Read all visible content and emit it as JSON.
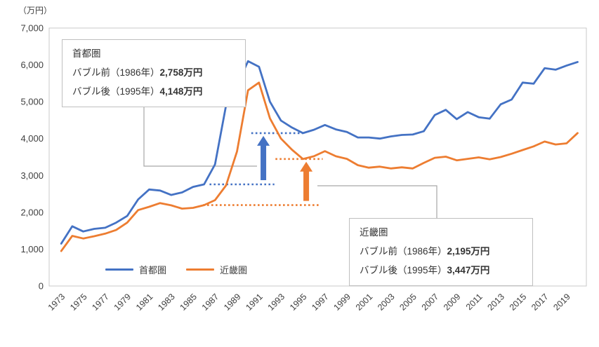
{
  "unit_label": "（万円）",
  "chart_data": {
    "type": "line",
    "title": "",
    "x": [
      1973,
      1974,
      1975,
      1976,
      1977,
      1978,
      1979,
      1980,
      1981,
      1982,
      1983,
      1984,
      1985,
      1986,
      1987,
      1988,
      1989,
      1990,
      1991,
      1992,
      1993,
      1994,
      1995,
      1996,
      1997,
      1998,
      1999,
      2000,
      2001,
      2002,
      2003,
      2004,
      2005,
      2006,
      2007,
      2008,
      2009,
      2010,
      2011,
      2012,
      2013,
      2014,
      2015,
      2016,
      2017,
      2018,
      2019,
      2020
    ],
    "series": [
      {
        "name": "首都圏",
        "color": "#4472C4",
        "values": [
          1150,
          1620,
          1480,
          1550,
          1580,
          1720,
          1900,
          2350,
          2620,
          2590,
          2470,
          2540,
          2690,
          2758,
          3300,
          4900,
          5450,
          6100,
          5950,
          5000,
          4490,
          4300,
          4148,
          4240,
          4370,
          4250,
          4180,
          4030,
          4030,
          4000,
          4060,
          4100,
          4110,
          4200,
          4640,
          4780,
          4530,
          4720,
          4580,
          4540,
          4930,
          5060,
          5520,
          5490,
          5910,
          5870,
          5980,
          6080
        ]
      },
      {
        "name": "近畿圏",
        "color": "#ED7D31",
        "values": [
          950,
          1360,
          1290,
          1350,
          1420,
          1520,
          1720,
          2060,
          2150,
          2250,
          2190,
          2100,
          2120,
          2195,
          2330,
          2730,
          3650,
          5310,
          5520,
          4550,
          4000,
          3700,
          3447,
          3520,
          3660,
          3520,
          3450,
          3280,
          3210,
          3240,
          3190,
          3220,
          3190,
          3340,
          3480,
          3510,
          3410,
          3450,
          3490,
          3440,
          3500,
          3590,
          3690,
          3790,
          3920,
          3840,
          3870,
          4150
        ]
      }
    ],
    "ylim": [
      0,
      7000
    ],
    "ytick_step": 1000,
    "xtick_labels": [
      "1973",
      "1975",
      "1977",
      "1979",
      "1981",
      "1983",
      "1985",
      "1987",
      "1989",
      "1991",
      "1993",
      "1995",
      "1997",
      "1999",
      "2001",
      "2003",
      "2005",
      "2007",
      "2009",
      "2011",
      "2013",
      "2015",
      "2017",
      "2019"
    ],
    "grid": false,
    "legend_position": "bottom-inside"
  },
  "legend": {
    "items": [
      {
        "label": "首都圏",
        "color": "#4472C4"
      },
      {
        "label": "近畿圏",
        "color": "#ED7D31"
      }
    ]
  },
  "annotations": {
    "shutoken": {
      "title": "首都圏",
      "rows": [
        {
          "label": "バブル前（1986年）",
          "value": "2,758万円"
        },
        {
          "label": "バブル後（1995年）",
          "value": "4,148万円"
        }
      ]
    },
    "kinki": {
      "title": "近畿圏",
      "rows": [
        {
          "label": "バブル前（1986年）",
          "value": "2,195万円"
        },
        {
          "label": "バブル後（1995年）",
          "value": "3,447万円"
        }
      ]
    }
  },
  "guides": {
    "dotted_lines": [
      {
        "series": "首都圏",
        "color": "#4472C4",
        "value": 2758,
        "x_start": 1986.5,
        "x_end": 1992.4
      },
      {
        "series": "首都圏",
        "color": "#4472C4",
        "value": 4148,
        "x_start": 1990.3,
        "x_end": 1995.0
      },
      {
        "series": "近畿圏",
        "color": "#ED7D31",
        "value": 2195,
        "x_start": 1985.9,
        "x_end": 1996.6
      },
      {
        "series": "近畿圏",
        "color": "#ED7D31",
        "value": 3447,
        "x_start": 1992.5,
        "x_end": 1996.8
      }
    ],
    "arrows": [
      {
        "color": "#4472C4",
        "x": 1991.4,
        "value_from": 2758,
        "value_to": 4148
      },
      {
        "color": "#ED7D31",
        "x": 1995.3,
        "value_from": 2195,
        "value_to": 3447
      }
    ],
    "connector_color": "#A6A6A6"
  }
}
